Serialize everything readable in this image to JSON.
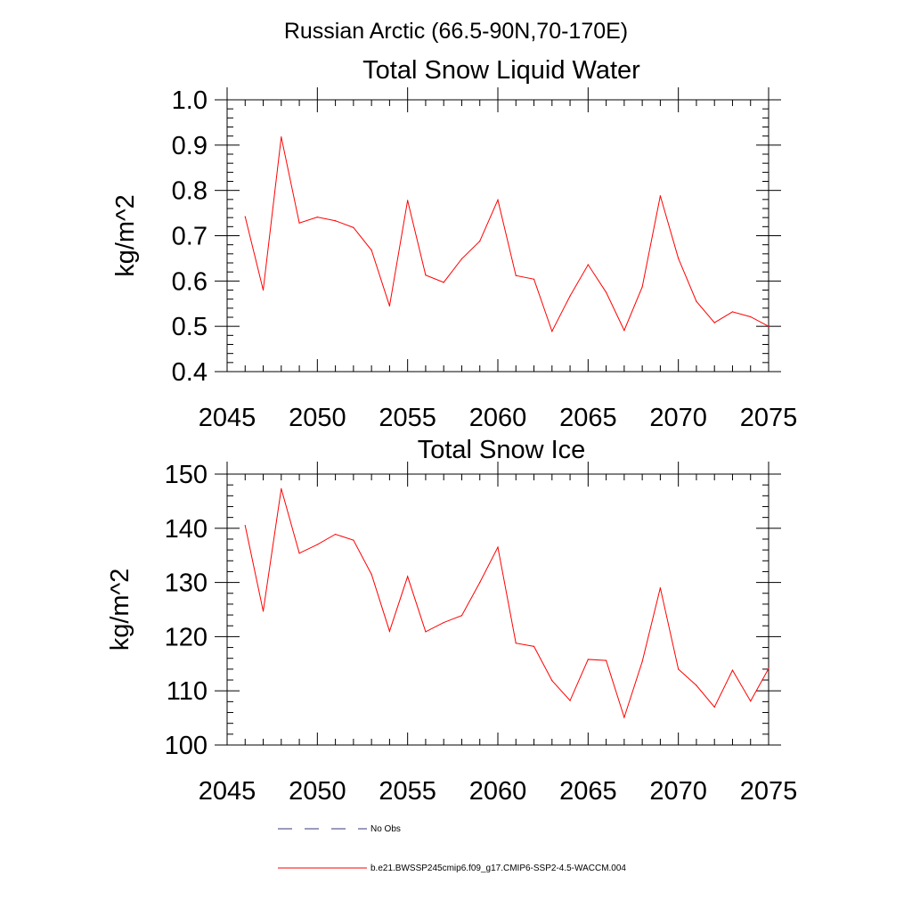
{
  "figure": {
    "suptitle": "Russian Arctic (66.5-90N,70-170E)"
  },
  "legend": {
    "entries": [
      {
        "label": "No Obs",
        "color": "#3a3a7a",
        "style": "dashed"
      },
      {
        "label": "b.e21.BWSSP245cmip6.f09_g17.CMIP6-SSP2-4.5-WACCM.004",
        "color": "#ff0000",
        "style": "solid"
      }
    ]
  },
  "chart_data": [
    {
      "type": "line",
      "title": "Total Snow Liquid Water",
      "xlabel": "",
      "ylabel": "kg/m^2",
      "xlim": [
        2046,
        2075
      ],
      "ylim": [
        0.4,
        1.0
      ],
      "x_ticks": [
        "2045",
        "2050",
        "2055",
        "2060",
        "2065",
        "2070",
        "2075"
      ],
      "y_ticks": [
        "0.4",
        "0.5",
        "0.6",
        "0.7",
        "0.8",
        "0.9",
        "1.0"
      ],
      "x_tick_values": [
        2045,
        2050,
        2055,
        2060,
        2065,
        2070,
        2075
      ],
      "y_tick_values": [
        0.4,
        0.5,
        0.6,
        0.7,
        0.8,
        0.9,
        1.0
      ],
      "grid": false,
      "x": [
        2046,
        2047,
        2048,
        2049,
        2050,
        2051,
        2052,
        2053,
        2054,
        2055,
        2056,
        2057,
        2058,
        2059,
        2060,
        2061,
        2062,
        2063,
        2064,
        2065,
        2066,
        2067,
        2068,
        2069,
        2070,
        2071,
        2072,
        2073,
        2074,
        2075
      ],
      "series": [
        {
          "color": "#ff0000",
          "values": [
            0.742,
            0.58,
            0.918,
            0.728,
            0.741,
            0.733,
            0.718,
            0.668,
            0.545,
            0.778,
            0.613,
            0.597,
            0.649,
            0.688,
            0.779,
            0.612,
            0.604,
            0.489,
            0.567,
            0.636,
            0.575,
            0.491,
            0.587,
            0.788,
            0.65,
            0.555,
            0.508,
            0.532,
            0.521,
            0.5
          ]
        }
      ]
    },
    {
      "type": "line",
      "title": "Total Snow Ice",
      "xlabel": "",
      "ylabel": "kg/m^2",
      "xlim": [
        2046,
        2075
      ],
      "ylim": [
        100,
        150
      ],
      "x_ticks": [
        "2045",
        "2050",
        "2055",
        "2060",
        "2065",
        "2070",
        "2075"
      ],
      "y_ticks": [
        "100",
        "110",
        "120",
        "130",
        "140",
        "150"
      ],
      "x_tick_values": [
        2045,
        2050,
        2055,
        2060,
        2065,
        2070,
        2075
      ],
      "y_tick_values": [
        100,
        110,
        120,
        130,
        140,
        150
      ],
      "grid": false,
      "x": [
        2046,
        2047,
        2048,
        2049,
        2050,
        2051,
        2052,
        2053,
        2054,
        2055,
        2056,
        2057,
        2058,
        2059,
        2060,
        2061,
        2062,
        2063,
        2064,
        2065,
        2066,
        2067,
        2068,
        2069,
        2070,
        2071,
        2072,
        2073,
        2074,
        2075
      ],
      "series": [
        {
          "color": "#ff0000",
          "values": [
            140.5,
            124.7,
            147.3,
            135.4,
            137.0,
            138.9,
            137.8,
            131.5,
            121.0,
            131.1,
            120.9,
            122.6,
            123.9,
            130.0,
            136.5,
            118.8,
            118.2,
            111.9,
            108.2,
            115.8,
            115.6,
            105.1,
            115.4,
            129.0,
            114.0,
            111.0,
            107.0,
            113.8,
            108.1,
            114.1
          ]
        }
      ]
    }
  ]
}
